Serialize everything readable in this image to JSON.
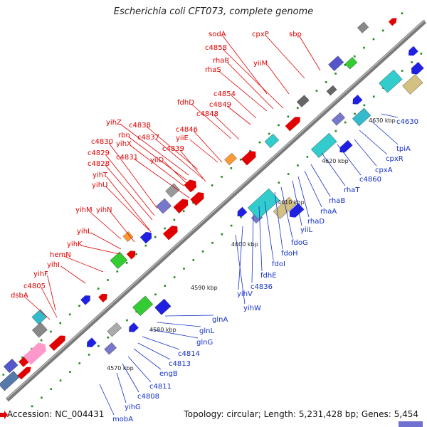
{
  "title": "Escherichia coli CFT073, complete genome",
  "footer": {
    "accession": "Accession: NC_004431",
    "summary": "Topology: circular; Length: 5,231,428 bp; Genes: 5,454"
  },
  "colors": {
    "backbone": "#8a8a8a",
    "forward_label": "#e00000",
    "reverse_label": "#1530c8",
    "tick": "#1a8a1a"
  },
  "scale_labels": [
    "4570 kbp",
    "4580 kbp",
    "4590 kbp",
    "4600 kbp",
    "4610 kbp",
    "4620 kbp",
    "4630 kbp"
  ],
  "forward_labels": [
    "sodA",
    "cpxP",
    "sbp",
    "c4858",
    "rhaR",
    "yiiM",
    "rhaS",
    "c4854",
    "c4849",
    "fdhD",
    "c4848",
    "c4846",
    "yiiE",
    "yihZ",
    "c4838",
    "rbn",
    "c4837",
    "yihX",
    "c4839",
    "c4830",
    "c4831",
    "yiiD",
    "c4829",
    "c4828",
    "yihT",
    "yihU",
    "yihM",
    "yihN",
    "yihL",
    "yihK",
    "hemN",
    "yihI",
    "yihF",
    "c4805",
    "dsbA"
  ],
  "reverse_labels": [
    "c4630",
    "tpiA",
    "cpxR",
    "cpxA",
    "c4860",
    "rhaT",
    "rhaB",
    "rhaA",
    "rhaD",
    "yiiL",
    "fdoG",
    "fdoH",
    "fdoI",
    "fdhE",
    "c4836",
    "yihV",
    "yihW",
    "glnA",
    "glnL",
    "glnG",
    "c4814",
    "c4813",
    "engB",
    "c4811",
    "c4808",
    "yihG",
    "mobA"
  ]
}
